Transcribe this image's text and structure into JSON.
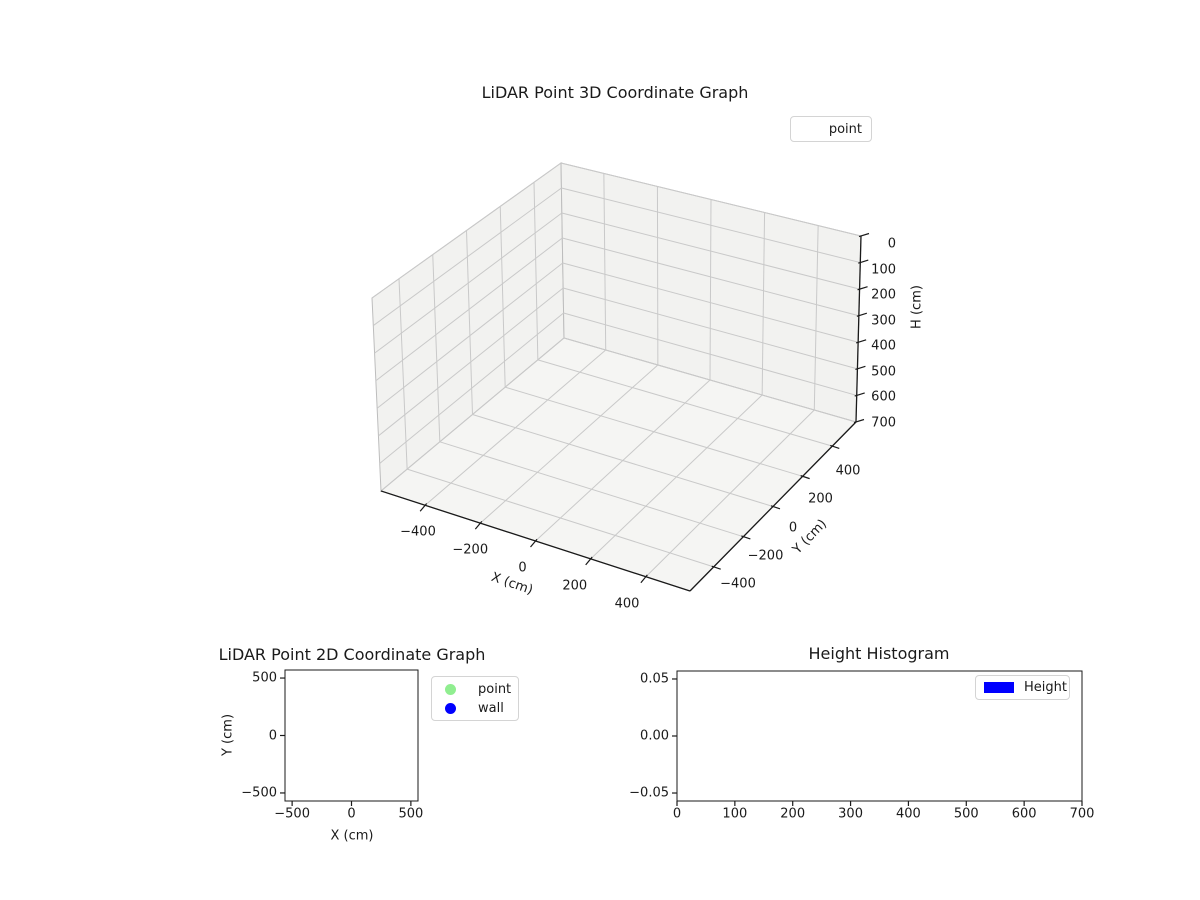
{
  "figure": {
    "background": "#ffffff",
    "text_color": "#1a1a1a"
  },
  "chart_data": [
    {
      "id": "lidar-3d",
      "type": "scatter",
      "subtype": "scatter3d",
      "title": "LiDAR Point 3D Coordinate Graph",
      "xlabel": "X (cm)",
      "ylabel": "Y (cm)",
      "zlabel": "H (cm)",
      "x_ticks": [
        -400,
        -200,
        0,
        200,
        400
      ],
      "y_ticks": [
        -400,
        -200,
        0,
        200,
        400
      ],
      "z_ticks": [
        0,
        100,
        200,
        300,
        400,
        500,
        600,
        700
      ],
      "xlim": [
        -560,
        560
      ],
      "ylim": [
        -560,
        560
      ],
      "zlim": [
        0,
        700
      ],
      "z_axis_inverted": true,
      "grid": true,
      "legend_position": "upper right outside",
      "legend": [
        {
          "label": "point",
          "marker": "none"
        }
      ],
      "series": [
        {
          "name": "point",
          "points": []
        }
      ]
    },
    {
      "id": "lidar-2d",
      "type": "scatter",
      "title": "LiDAR Point 2D Coordinate Graph",
      "xlabel": "X (cm)",
      "ylabel": "Y (cm)",
      "x_ticks": [
        -500,
        0,
        500
      ],
      "y_ticks": [
        500,
        0,
        -500
      ],
      "xlim": [
        -560,
        560
      ],
      "ylim": [
        -570,
        570
      ],
      "grid": false,
      "legend_position": "right outside",
      "legend": [
        {
          "label": "point",
          "marker": "circle",
          "color": "#90ee90"
        },
        {
          "label": "wall",
          "marker": "circle",
          "color": "#0000ff"
        }
      ],
      "series": [
        {
          "name": "point",
          "points": []
        },
        {
          "name": "wall",
          "points": []
        }
      ]
    },
    {
      "id": "height-histogram",
      "type": "bar",
      "subtype": "histogram",
      "title": "Height Histogram",
      "xlabel": "",
      "ylabel": "",
      "x_ticks": [
        0,
        100,
        200,
        300,
        400,
        500,
        600,
        700
      ],
      "y_ticks": [
        0.05,
        0.0,
        -0.05
      ],
      "xlim": [
        0,
        700
      ],
      "ylim": [
        -0.057,
        0.057
      ],
      "grid": false,
      "legend_position": "upper right inside",
      "legend": [
        {
          "label": "Height",
          "marker": "rect",
          "color": "#0000ff"
        }
      ],
      "values": []
    }
  ],
  "colors": {
    "axis_line": "#1a1a1a",
    "grid_3d": "#c9c9c9",
    "pane_edge_3d": "#bdbdbd",
    "pane_wall": "#f2f2f0",
    "pane_floor": "#f5f5f3"
  }
}
